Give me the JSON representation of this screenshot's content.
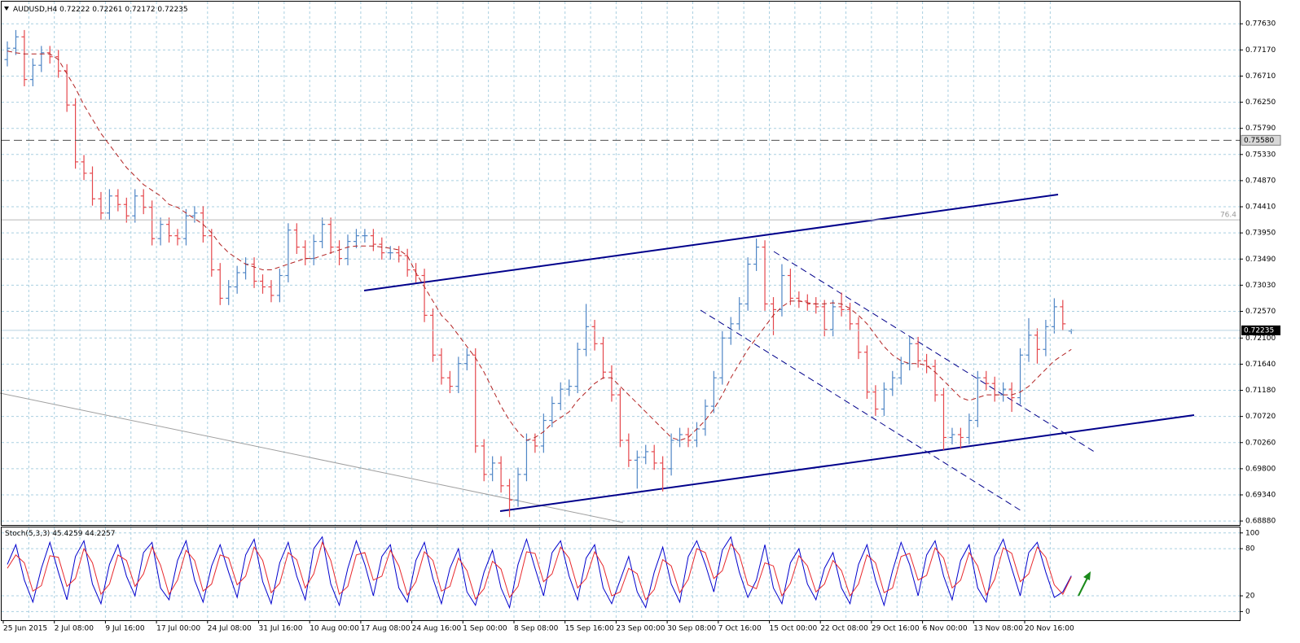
{
  "chart_data": {
    "type": "ohlc",
    "symbol": "AUDUSD,H4",
    "up_color": "#4f86c6",
    "down_color": "#e5484d",
    "categories": [
      "25 Jun 2015",
      null,
      null,
      null,
      null,
      null,
      "2 Jul 08:00",
      null,
      null,
      null,
      null,
      null,
      "9 Jul 16:00",
      null,
      null,
      null,
      null,
      null,
      "17 Jul 00:00",
      null,
      null,
      null,
      null,
      null,
      "24 Jul 08:00",
      null,
      null,
      null,
      null,
      null,
      "31 Jul 16:00",
      null,
      null,
      null,
      null,
      null,
      "10 Aug 00:00",
      null,
      null,
      null,
      null,
      null,
      "17 Aug 08:00",
      null,
      null,
      null,
      null,
      null,
      "24 Aug 16:00",
      null,
      null,
      null,
      null,
      null,
      "1 Sep 00:00",
      null,
      null,
      null,
      null,
      null,
      "8 Sep 08:00",
      null,
      null,
      null,
      null,
      null,
      "15 Sep 16:00",
      null,
      null,
      null,
      null,
      null,
      "23 Sep 00:00",
      null,
      null,
      null,
      null,
      null,
      "30 Sep 08:00",
      null,
      null,
      null,
      null,
      null,
      "7 Oct 16:00",
      null,
      null,
      null,
      null,
      null,
      "15 Oct 00:00",
      null,
      null,
      null,
      null,
      null,
      "22 Oct 08:00",
      null,
      null,
      null,
      null,
      null,
      "29 Oct 16:00",
      null,
      null,
      null,
      null,
      null,
      "6 Nov 00:00",
      null,
      null,
      null,
      null,
      null,
      "13 Nov 08:00",
      null,
      null,
      null,
      null,
      null,
      "20 Nov 16:00",
      null,
      null,
      null,
      null,
      null
    ],
    "open": [
      0.77,
      0.772,
      0.774,
      0.7665,
      0.769,
      0.7712,
      0.7705,
      0.768,
      0.762,
      0.752,
      0.75,
      0.7455,
      0.743,
      0.746,
      0.7445,
      0.7425,
      0.746,
      0.744,
      0.7385,
      0.741,
      0.739,
      0.7385,
      0.7425,
      0.743,
      0.739,
      0.733,
      0.728,
      0.73,
      0.7325,
      0.734,
      0.731,
      0.73,
      0.7285,
      0.732,
      0.74,
      0.737,
      0.735,
      0.738,
      0.741,
      0.737,
      0.735,
      0.738,
      0.739,
      0.739,
      0.7375,
      0.736,
      0.736,
      0.7355,
      0.733,
      0.732,
      0.725,
      0.718,
      0.714,
      0.7125,
      0.7165,
      0.718,
      0.702,
      0.697,
      0.699,
      0.695,
      0.6925,
      0.697,
      0.703,
      0.702,
      0.7065,
      0.7095,
      0.712,
      0.7125,
      0.719,
      0.723,
      0.72,
      0.715,
      0.711,
      0.703,
      0.6995,
      0.7,
      0.701,
      0.699,
      0.698,
      0.703,
      0.704,
      0.703,
      0.705,
      0.709,
      0.714,
      0.721,
      0.7235,
      0.727,
      0.734,
      0.737,
      0.727,
      0.726,
      0.732,
      0.728,
      0.7275,
      0.727,
      0.7265,
      0.7225,
      0.7265,
      0.726,
      0.7235,
      0.7185,
      0.7115,
      0.7085,
      0.712,
      0.714,
      0.7165,
      0.72,
      0.717,
      0.716,
      0.711,
      0.7035,
      0.704,
      0.7035,
      0.7065,
      0.714,
      0.713,
      0.711,
      0.712,
      0.7105,
      0.718,
      0.7215,
      0.719,
      0.723,
      0.7265,
      0.72222
    ],
    "high": [
      0.7732,
      0.7752,
      0.7752,
      0.7702,
      0.7724,
      0.7724,
      0.7717,
      0.7692,
      0.7632,
      0.7532,
      0.7512,
      0.7467,
      0.7472,
      0.7472,
      0.7457,
      0.7472,
      0.7472,
      0.7452,
      0.7422,
      0.7422,
      0.7402,
      0.7437,
      0.7442,
      0.7442,
      0.7402,
      0.7342,
      0.7312,
      0.7337,
      0.7352,
      0.7352,
      0.7322,
      0.7312,
      0.7332,
      0.7412,
      0.7412,
      0.7382,
      0.7392,
      0.7422,
      0.7422,
      0.7382,
      0.7392,
      0.7402,
      0.7402,
      0.7402,
      0.7387,
      0.7372,
      0.7372,
      0.7367,
      0.7342,
      0.7332,
      0.7262,
      0.7192,
      0.7152,
      0.7177,
      0.7192,
      0.7192,
      0.7032,
      0.7002,
      0.7002,
      0.6962,
      0.6982,
      0.7042,
      0.7042,
      0.7077,
      0.7107,
      0.7132,
      0.7137,
      0.7202,
      0.727,
      0.7242,
      0.7212,
      0.7162,
      0.7122,
      0.7042,
      0.7012,
      0.7022,
      0.7022,
      0.7002,
      0.7042,
      0.7052,
      0.7052,
      0.7062,
      0.7102,
      0.7152,
      0.7222,
      0.7247,
      0.7282,
      0.7352,
      0.7385,
      0.7382,
      0.7282,
      0.734,
      0.7332,
      0.7292,
      0.7287,
      0.7282,
      0.7277,
      0.7277,
      0.729,
      0.7272,
      0.7247,
      0.7197,
      0.7127,
      0.7132,
      0.7152,
      0.7177,
      0.7212,
      0.7212,
      0.7182,
      0.7172,
      0.7122,
      0.7052,
      0.7052,
      0.7077,
      0.7152,
      0.7152,
      0.7142,
      0.7132,
      0.7132,
      0.7192,
      0.7245,
      0.7227,
      0.7242,
      0.728,
      0.7277,
      0.72261
    ],
    "low": [
      0.7688,
      0.7708,
      0.7653,
      0.7653,
      0.7678,
      0.7693,
      0.7668,
      0.7608,
      0.7508,
      0.7488,
      0.7443,
      0.7418,
      0.7418,
      0.7433,
      0.7413,
      0.7413,
      0.7428,
      0.7373,
      0.7373,
      0.7378,
      0.7373,
      0.7373,
      0.7413,
      0.7378,
      0.7318,
      0.7268,
      0.7268,
      0.7288,
      0.7313,
      0.7298,
      0.7288,
      0.7273,
      0.7273,
      0.7308,
      0.7358,
      0.7338,
      0.7338,
      0.7368,
      0.7358,
      0.7338,
      0.7338,
      0.7368,
      0.7378,
      0.7363,
      0.7348,
      0.7348,
      0.7343,
      0.7318,
      0.7308,
      0.7238,
      0.7168,
      0.7128,
      0.7113,
      0.7113,
      0.7153,
      0.7008,
      0.6958,
      0.6958,
      0.6938,
      0.6895,
      0.6913,
      0.6958,
      0.7008,
      0.7008,
      0.7053,
      0.7083,
      0.7108,
      0.7113,
      0.7178,
      0.7188,
      0.7138,
      0.7098,
      0.7018,
      0.6983,
      0.6945,
      0.6988,
      0.6978,
      0.694,
      0.6968,
      0.7018,
      0.7018,
      0.7018,
      0.7038,
      0.7078,
      0.7128,
      0.7198,
      0.7223,
      0.7258,
      0.7328,
      0.7258,
      0.7215,
      0.7248,
      0.7268,
      0.7263,
      0.7258,
      0.7253,
      0.7213,
      0.7213,
      0.7248,
      0.7223,
      0.7173,
      0.7103,
      0.7073,
      0.7073,
      0.7108,
      0.7128,
      0.7153,
      0.7158,
      0.7148,
      0.7098,
      0.7013,
      0.7023,
      0.7015,
      0.7023,
      0.7053,
      0.7118,
      0.7098,
      0.7098,
      0.708,
      0.7093,
      0.7168,
      0.7165,
      0.7178,
      0.7218,
      0.7223,
      0.72172
    ],
    "close": [
      0.772,
      0.774,
      0.7665,
      0.769,
      0.7712,
      0.7705,
      0.768,
      0.762,
      0.752,
      0.75,
      0.7455,
      0.743,
      0.746,
      0.7445,
      0.7425,
      0.746,
      0.744,
      0.7385,
      0.741,
      0.739,
      0.7385,
      0.7425,
      0.743,
      0.739,
      0.733,
      0.728,
      0.73,
      0.7325,
      0.734,
      0.731,
      0.73,
      0.7285,
      0.732,
      0.74,
      0.737,
      0.735,
      0.738,
      0.741,
      0.737,
      0.735,
      0.738,
      0.739,
      0.739,
      0.7375,
      0.736,
      0.736,
      0.7355,
      0.733,
      0.732,
      0.725,
      0.718,
      0.714,
      0.7125,
      0.7165,
      0.718,
      0.702,
      0.697,
      0.699,
      0.695,
      0.6925,
      0.697,
      0.703,
      0.702,
      0.7065,
      0.7095,
      0.712,
      0.7125,
      0.719,
      0.723,
      0.72,
      0.715,
      0.711,
      0.703,
      0.6995,
      0.7,
      0.701,
      0.699,
      0.698,
      0.703,
      0.704,
      0.703,
      0.705,
      0.709,
      0.714,
      0.721,
      0.7235,
      0.727,
      0.734,
      0.737,
      0.727,
      0.726,
      0.732,
      0.728,
      0.7275,
      0.727,
      0.7265,
      0.7225,
      0.7265,
      0.726,
      0.7235,
      0.7185,
      0.7115,
      0.7085,
      0.712,
      0.714,
      0.7165,
      0.72,
      0.717,
      0.716,
      0.711,
      0.7035,
      0.704,
      0.7035,
      0.7065,
      0.714,
      0.713,
      0.711,
      0.712,
      0.7105,
      0.718,
      0.7215,
      0.719,
      0.723,
      0.7265,
      0.7235,
      0.72235
    ],
    "ma": {
      "color": "#b22222",
      "values": [
        0.7715,
        0.7712,
        0.771,
        0.771,
        0.771,
        0.771,
        0.77,
        0.7675,
        0.765,
        0.762,
        0.7595,
        0.757,
        0.755,
        0.753,
        0.751,
        0.7495,
        0.748,
        0.747,
        0.746,
        0.7445,
        0.744,
        0.743,
        0.742,
        0.741,
        0.7395,
        0.7375,
        0.736,
        0.735,
        0.734,
        0.7335,
        0.733,
        0.733,
        0.7335,
        0.734,
        0.7345,
        0.735,
        0.735,
        0.7355,
        0.736,
        0.7365,
        0.737,
        0.7372,
        0.7372,
        0.7372,
        0.737,
        0.7368,
        0.7365,
        0.7355,
        0.7325,
        0.73,
        0.7275,
        0.725,
        0.7235,
        0.7215,
        0.7195,
        0.7175,
        0.715,
        0.712,
        0.709,
        0.7065,
        0.7045,
        0.703,
        0.7035,
        0.7045,
        0.706,
        0.707,
        0.708,
        0.71,
        0.7115,
        0.713,
        0.714,
        0.714,
        0.7125,
        0.711,
        0.7095,
        0.708,
        0.7065,
        0.705,
        0.7035,
        0.703,
        0.7035,
        0.705,
        0.7065,
        0.7085,
        0.711,
        0.714,
        0.7165,
        0.719,
        0.721,
        0.723,
        0.725,
        0.7265,
        0.7275,
        0.7275,
        0.7272,
        0.727,
        0.727,
        0.7272,
        0.727,
        0.7262,
        0.725,
        0.7235,
        0.7215,
        0.7195,
        0.718,
        0.717,
        0.7165,
        0.7165,
        0.7162,
        0.715,
        0.7135,
        0.712,
        0.7105,
        0.71,
        0.7105,
        0.711,
        0.711,
        0.711,
        0.711,
        0.7115,
        0.7125,
        0.714,
        0.7155,
        0.717,
        0.718,
        0.719
      ]
    },
    "ylim": [
      0.6881,
      0.7802
    ],
    "yticks": [
      {
        "value": 0.7763,
        "label": "0.77630"
      },
      {
        "value": 0.7717,
        "label": "0.77170"
      },
      {
        "value": 0.7671,
        "label": "0.76710"
      },
      {
        "value": 0.7625,
        "label": "0.76250"
      },
      {
        "value": 0.7579,
        "label": "0.75790"
      },
      {
        "value": 0.7533,
        "label": "0.75330"
      },
      {
        "value": 0.7487,
        "label": "0.74870"
      },
      {
        "value": 0.7441,
        "label": "0.74410"
      },
      {
        "value": 0.7395,
        "label": "0.73950"
      },
      {
        "value": 0.7349,
        "label": "0.73490"
      },
      {
        "value": 0.7303,
        "label": "0.73030"
      },
      {
        "value": 0.7257,
        "label": "0.72570"
      },
      {
        "value": 0.721,
        "label": "0.72100"
      },
      {
        "value": 0.7164,
        "label": "0.71640"
      },
      {
        "value": 0.7118,
        "label": "0.71180"
      },
      {
        "value": 0.7072,
        "label": "0.70720"
      },
      {
        "value": 0.7026,
        "label": "0.70260"
      },
      {
        "value": 0.698,
        "label": "0.69800"
      },
      {
        "value": 0.6934,
        "label": "0.69340"
      },
      {
        "value": 0.6888,
        "label": "0.68880"
      }
    ],
    "grid": true,
    "levels": [
      {
        "value": 0.7558,
        "label": "0.75580"
      },
      {
        "value": 0.7418,
        "label": "76.4"
      }
    ],
    "indicator": {
      "name": "Stoch(5,3,3)",
      "ylim": [
        -11,
        107
      ],
      "yticks": [
        100,
        80,
        20,
        0
      ],
      "series": [
        {
          "color": "#0000cd",
          "values": [
            60,
            85,
            40,
            12,
            55,
            88,
            50,
            15,
            70,
            90,
            35,
            10,
            60,
            85,
            45,
            20,
            75,
            88,
            30,
            15,
            65,
            90,
            40,
            12,
            58,
            85,
            50,
            18,
            72,
            92,
            38,
            10,
            62,
            88,
            45,
            15,
            80,
            95,
            35,
            8,
            55,
            90,
            60,
            20,
            70,
            85,
            30,
            12,
            65,
            88,
            42,
            10,
            55,
            80,
            25,
            8,
            50,
            78,
            30,
            5,
            60,
            92,
            55,
            20,
            75,
            90,
            45,
            15,
            68,
            85,
            30,
            10,
            40,
            70,
            25,
            5,
            50,
            82,
            35,
            12,
            70,
            90,
            60,
            25,
            78,
            95,
            50,
            18,
            40,
            85,
            30,
            10,
            62,
            80,
            35,
            15,
            55,
            75,
            30,
            10,
            60,
            85,
            40,
            8,
            52,
            88,
            60,
            20,
            72,
            90,
            45,
            15,
            65,
            85,
            30,
            12,
            70,
            92,
            55,
            20,
            75,
            88,
            50,
            18,
            25,
            45.4259
          ]
        },
        {
          "color": "#e8282c",
          "values": [
            55,
            72,
            62,
            26,
            33,
            71,
            69,
            32,
            42,
            80,
            62,
            22,
            35,
            72,
            65,
            32,
            48,
            82,
            59,
            22,
            40,
            78,
            65,
            26,
            35,
            72,
            68,
            34,
            45,
            82,
            65,
            24,
            36,
            75,
            66,
            30,
            48,
            88,
            65,
            22,
            32,
            72,
            75,
            40,
            45,
            78,
            58,
            21,
            38,
            76,
            65,
            26,
            32,
            68,
            52,
            16,
            29,
            64,
            54,
            18,
            32,
            76,
            74,
            38,
            48,
            82,
            68,
            30,
            42,
            76,
            58,
            20,
            25,
            55,
            48,
            15,
            28,
            66,
            58,
            24,
            41,
            80,
            75,
            42,
            52,
            86,
            72,
            34,
            29,
            62,
            58,
            20,
            36,
            71,
            58,
            25,
            35,
            65,
            52,
            20,
            35,
            72,
            62,
            24,
            30,
            70,
            74,
            40,
            46,
            81,
            68,
            30,
            40,
            75,
            58,
            21,
            41,
            81,
            74,
            38,
            48,
            82,
            69,
            34,
            22,
            44.2257
          ]
        }
      ]
    }
  }
}
